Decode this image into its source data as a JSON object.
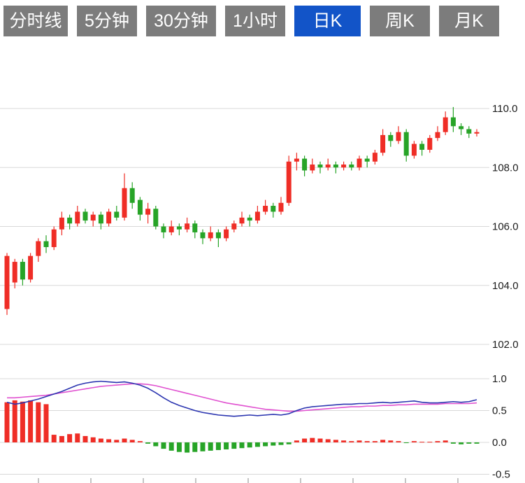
{
  "tab_bar": {
    "tabs": [
      {
        "label": "分时线",
        "active": false
      },
      {
        "label": "5分钟",
        "active": false
      },
      {
        "label": "30分钟",
        "active": false
      },
      {
        "label": "1小时",
        "active": false
      },
      {
        "label": "日K",
        "active": true
      },
      {
        "label": "周K",
        "active": false
      },
      {
        "label": "月K",
        "active": false
      }
    ],
    "active_bg": "#1254c8",
    "inactive_bg": "#7c7c7c",
    "text_color": "#ffffff"
  },
  "chart_data": {
    "type": "candlestick",
    "title": "",
    "panels": [
      "price",
      "macd"
    ],
    "price_axis": {
      "labels": [
        110.0,
        108.0,
        106.0,
        104.0,
        102.0
      ],
      "min": 102.0,
      "max": 110.0
    },
    "macd_axis": {
      "labels": [
        1.0,
        0.5,
        0.0,
        -0.5
      ],
      "min": -0.5,
      "max": 1.0
    },
    "x_ticks": 9,
    "candles": [
      [
        103.2,
        105.0,
        103.0,
        105.1
      ],
      [
        104.1,
        104.8,
        103.9,
        104.9
      ],
      [
        104.8,
        104.2,
        104.0,
        104.9
      ],
      [
        104.2,
        105.0,
        104.1,
        105.1
      ],
      [
        105.0,
        105.5,
        104.8,
        105.6
      ],
      [
        105.5,
        105.3,
        105.1,
        105.7
      ],
      [
        105.3,
        105.9,
        105.2,
        106.0
      ],
      [
        105.9,
        106.3,
        105.7,
        106.5
      ],
      [
        106.3,
        106.1,
        105.9,
        106.4
      ],
      [
        106.1,
        106.5,
        106.0,
        106.7
      ],
      [
        106.5,
        106.2,
        106.1,
        106.6
      ],
      [
        106.2,
        106.4,
        106.0,
        106.5
      ],
      [
        106.4,
        106.1,
        105.9,
        106.5
      ],
      [
        106.1,
        106.5,
        106.0,
        106.6
      ],
      [
        106.5,
        106.3,
        106.2,
        106.7
      ],
      [
        106.3,
        107.3,
        106.2,
        107.8
      ],
      [
        107.3,
        106.8,
        106.6,
        107.5
      ],
      [
        106.9,
        106.4,
        106.2,
        107.0
      ],
      [
        106.4,
        106.6,
        106.1,
        106.8
      ],
      [
        106.6,
        106.0,
        105.9,
        106.7
      ],
      [
        106.0,
        105.8,
        105.6,
        106.1
      ],
      [
        105.8,
        106.0,
        105.7,
        106.2
      ],
      [
        106.0,
        105.9,
        105.7,
        106.1
      ],
      [
        105.9,
        106.1,
        105.8,
        106.3
      ],
      [
        106.1,
        105.8,
        105.6,
        106.2
      ],
      [
        105.8,
        105.6,
        105.4,
        105.9
      ],
      [
        105.6,
        105.8,
        105.5,
        106.0
      ],
      [
        105.8,
        105.6,
        105.3,
        105.9
      ],
      [
        105.6,
        105.9,
        105.5,
        106.0
      ],
      [
        105.9,
        106.1,
        105.8,
        106.2
      ],
      [
        106.1,
        106.3,
        106.0,
        106.5
      ],
      [
        106.3,
        106.2,
        106.0,
        106.4
      ],
      [
        106.2,
        106.5,
        106.1,
        106.7
      ],
      [
        106.5,
        106.7,
        106.4,
        106.9
      ],
      [
        106.7,
        106.5,
        106.3,
        106.8
      ],
      [
        106.5,
        106.8,
        106.4,
        107.0
      ],
      [
        106.8,
        108.2,
        106.7,
        108.4
      ],
      [
        108.2,
        108.3,
        107.9,
        108.5
      ],
      [
        108.3,
        107.9,
        107.7,
        108.4
      ],
      [
        107.9,
        108.1,
        107.8,
        108.3
      ],
      [
        108.1,
        108.0,
        107.8,
        108.2
      ],
      [
        108.0,
        108.1,
        107.9,
        108.3
      ],
      [
        108.1,
        108.0,
        107.8,
        108.2
      ],
      [
        108.0,
        108.1,
        107.9,
        108.2
      ],
      [
        108.1,
        108.0,
        107.9,
        108.2
      ],
      [
        108.0,
        108.3,
        107.9,
        108.4
      ],
      [
        108.3,
        108.2,
        108.0,
        108.4
      ],
      [
        108.2,
        108.5,
        108.1,
        108.6
      ],
      [
        108.5,
        109.1,
        108.4,
        109.3
      ],
      [
        109.1,
        108.9,
        108.7,
        109.2
      ],
      [
        108.9,
        109.2,
        108.8,
        109.4
      ],
      [
        109.2,
        108.4,
        108.2,
        109.3
      ],
      [
        108.4,
        108.8,
        108.3,
        108.9
      ],
      [
        108.8,
        108.6,
        108.4,
        108.9
      ],
      [
        108.6,
        109.0,
        108.5,
        109.1
      ],
      [
        109.0,
        109.2,
        108.9,
        109.4
      ],
      [
        109.2,
        109.7,
        109.1,
        109.9
      ],
      [
        109.7,
        109.4,
        109.2,
        110.05
      ],
      [
        109.4,
        109.3,
        109.1,
        109.5
      ],
      [
        109.3,
        109.15,
        109.0,
        109.4
      ],
      [
        109.15,
        109.2,
        109.05,
        109.3
      ]
    ],
    "macd": {
      "histogram": [
        0.63,
        0.66,
        0.64,
        0.66,
        0.63,
        0.6,
        0.12,
        0.1,
        0.13,
        0.14,
        0.1,
        0.08,
        0.06,
        0.05,
        0.04,
        0.06,
        0.04,
        0.02,
        -0.02,
        -0.06,
        -0.1,
        -0.13,
        -0.15,
        -0.16,
        -0.15,
        -0.14,
        -0.13,
        -0.12,
        -0.11,
        -0.1,
        -0.09,
        -0.08,
        -0.07,
        -0.06,
        -0.05,
        -0.04,
        -0.03,
        0.03,
        0.06,
        0.07,
        0.06,
        0.05,
        0.04,
        0.03,
        0.02,
        0.03,
        0.02,
        0.02,
        0.04,
        0.03,
        0.02,
        -0.01,
        0.02,
        0.01,
        0.01,
        0.02,
        0.03,
        -0.02,
        -0.03,
        -0.02,
        -0.02
      ],
      "dif": [
        0.63,
        0.6,
        0.62,
        0.65,
        0.68,
        0.72,
        0.76,
        0.8,
        0.85,
        0.9,
        0.93,
        0.95,
        0.96,
        0.95,
        0.94,
        0.95,
        0.93,
        0.9,
        0.85,
        0.78,
        0.7,
        0.63,
        0.58,
        0.54,
        0.5,
        0.47,
        0.45,
        0.43,
        0.42,
        0.41,
        0.42,
        0.43,
        0.42,
        0.43,
        0.44,
        0.43,
        0.45,
        0.5,
        0.54,
        0.56,
        0.57,
        0.58,
        0.59,
        0.6,
        0.6,
        0.61,
        0.61,
        0.62,
        0.63,
        0.62,
        0.63,
        0.64,
        0.65,
        0.63,
        0.62,
        0.62,
        0.63,
        0.64,
        0.63,
        0.64,
        0.67
      ],
      "dea": [
        0.7,
        0.7,
        0.71,
        0.72,
        0.73,
        0.74,
        0.76,
        0.78,
        0.8,
        0.82,
        0.84,
        0.86,
        0.88,
        0.89,
        0.9,
        0.91,
        0.92,
        0.92,
        0.91,
        0.89,
        0.86,
        0.83,
        0.8,
        0.77,
        0.74,
        0.71,
        0.68,
        0.65,
        0.62,
        0.6,
        0.58,
        0.56,
        0.54,
        0.52,
        0.51,
        0.5,
        0.49,
        0.49,
        0.5,
        0.51,
        0.52,
        0.53,
        0.54,
        0.55,
        0.56,
        0.56,
        0.57,
        0.57,
        0.58,
        0.58,
        0.59,
        0.59,
        0.6,
        0.6,
        0.6,
        0.6,
        0.61,
        0.61,
        0.61,
        0.61,
        0.62
      ]
    },
    "colors": {
      "up": "#ef2d26",
      "down": "#27a427",
      "dif": "#2b35b0",
      "dea": "#e051d0",
      "grid": "#d8d8d8",
      "axis_text": "#1c1c1c",
      "tick": "#888888"
    }
  }
}
